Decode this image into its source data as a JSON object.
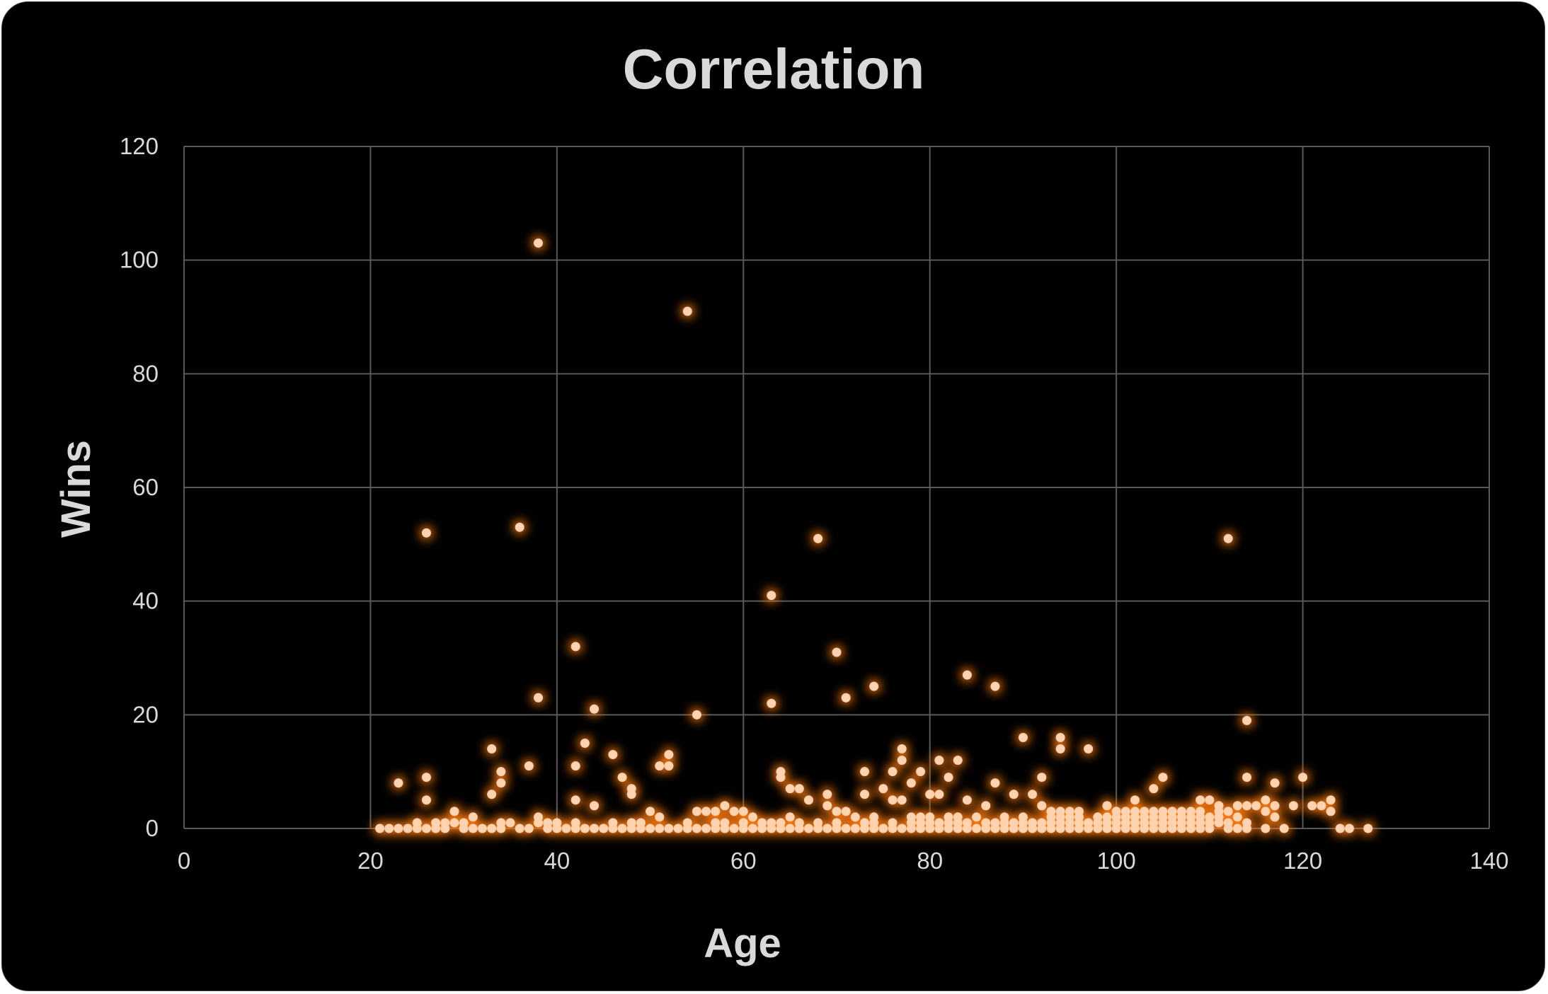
{
  "chart_data": {
    "type": "scatter",
    "title": "Correlation",
    "xlabel": "Age",
    "ylabel": "Wins",
    "xlim": [
      0,
      140
    ],
    "ylim": [
      0,
      120
    ],
    "xticks": [
      0,
      20,
      40,
      60,
      80,
      100,
      120,
      140
    ],
    "yticks": [
      0,
      20,
      40,
      60,
      80,
      100,
      120
    ],
    "grid": true,
    "legend": "none",
    "colors": {
      "background": "#000000",
      "marker": "#ffd2b0",
      "glow": "#ff7a10",
      "text": "#d9d9d9",
      "grid": "#595959"
    },
    "points": [
      [
        38,
        103
      ],
      [
        54,
        91
      ],
      [
        26,
        52
      ],
      [
        36,
        53
      ],
      [
        68,
        51
      ],
      [
        112,
        51
      ],
      [
        63,
        41
      ],
      [
        42,
        32
      ],
      [
        70,
        31
      ],
      [
        74,
        25
      ],
      [
        84,
        27
      ],
      [
        87,
        25
      ],
      [
        38,
        23
      ],
      [
        63,
        22
      ],
      [
        71,
        23
      ],
      [
        44,
        21
      ],
      [
        55,
        20
      ],
      [
        114,
        19
      ],
      [
        90,
        16
      ],
      [
        94,
        16
      ],
      [
        33,
        14
      ],
      [
        43,
        15
      ],
      [
        77,
        14
      ],
      [
        94,
        14
      ],
      [
        97,
        14
      ],
      [
        46,
        13
      ],
      [
        52,
        13
      ],
      [
        37,
        11
      ],
      [
        42,
        11
      ],
      [
        51,
        11
      ],
      [
        52,
        11
      ],
      [
        73,
        10
      ],
      [
        76,
        10
      ],
      [
        77,
        12
      ],
      [
        79,
        10
      ],
      [
        81,
        12
      ],
      [
        83,
        12
      ],
      [
        23,
        8
      ],
      [
        26,
        9
      ],
      [
        34,
        10
      ],
      [
        34,
        8
      ],
      [
        47,
        9
      ],
      [
        64,
        10
      ],
      [
        64,
        9
      ],
      [
        82,
        9
      ],
      [
        87,
        8
      ],
      [
        92,
        9
      ],
      [
        105,
        9
      ],
      [
        114,
        9
      ],
      [
        117,
        8
      ],
      [
        120,
        9
      ],
      [
        33,
        6
      ],
      [
        26,
        5
      ],
      [
        42,
        5
      ],
      [
        44,
        4
      ],
      [
        48,
        7
      ],
      [
        48,
        6
      ],
      [
        65,
        7
      ],
      [
        66,
        7
      ],
      [
        67,
        5
      ],
      [
        69,
        6
      ],
      [
        73,
        6
      ],
      [
        75,
        7
      ],
      [
        76,
        5
      ],
      [
        77,
        5
      ],
      [
        78,
        8
      ],
      [
        80,
        6
      ],
      [
        81,
        6
      ],
      [
        84,
        5
      ],
      [
        86,
        4
      ],
      [
        89,
        6
      ],
      [
        91,
        6
      ],
      [
        92,
        4
      ],
      [
        102,
        5
      ],
      [
        104,
        7
      ],
      [
        109,
        5
      ],
      [
        110,
        5
      ],
      [
        111,
        4
      ],
      [
        113,
        4
      ],
      [
        115,
        4
      ],
      [
        116,
        5
      ],
      [
        117,
        4
      ],
      [
        119,
        4
      ],
      [
        121,
        4
      ],
      [
        123,
        5
      ],
      [
        123,
        3
      ],
      [
        29,
        3
      ],
      [
        31,
        2
      ],
      [
        50,
        3
      ],
      [
        51,
        2
      ],
      [
        55,
        3
      ],
      [
        56,
        3
      ],
      [
        57,
        3
      ],
      [
        58,
        4
      ],
      [
        59,
        3
      ],
      [
        60,
        3
      ],
      [
        61,
        2
      ],
      [
        69,
        4
      ],
      [
        70,
        3
      ],
      [
        71,
        3
      ],
      [
        72,
        2
      ],
      [
        74,
        2
      ],
      [
        78,
        2
      ],
      [
        79,
        2
      ],
      [
        80,
        2
      ],
      [
        82,
        2
      ],
      [
        83,
        2
      ],
      [
        85,
        2
      ],
      [
        88,
        2
      ],
      [
        90,
        2
      ],
      [
        93,
        3
      ],
      [
        94,
        3
      ],
      [
        95,
        3
      ],
      [
        96,
        3
      ],
      [
        98,
        2
      ],
      [
        99,
        4
      ],
      [
        100,
        3
      ],
      [
        101,
        3
      ],
      [
        102,
        3
      ],
      [
        103,
        3
      ],
      [
        104,
        3
      ],
      [
        105,
        3
      ],
      [
        106,
        3
      ],
      [
        107,
        3
      ],
      [
        108,
        3
      ],
      [
        109,
        3
      ],
      [
        110,
        2
      ],
      [
        111,
        3
      ],
      [
        112,
        3
      ],
      [
        113,
        2
      ],
      [
        114,
        4
      ],
      [
        116,
        3
      ],
      [
        117,
        2
      ],
      [
        21,
        0
      ],
      [
        22,
        0
      ],
      [
        23,
        0
      ],
      [
        24,
        0
      ],
      [
        25,
        1
      ],
      [
        25,
        0
      ],
      [
        26,
        0
      ],
      [
        27,
        1
      ],
      [
        27,
        0
      ],
      [
        28,
        1
      ],
      [
        28,
        0
      ],
      [
        29,
        1
      ],
      [
        30,
        1
      ],
      [
        30,
        0
      ],
      [
        31,
        0
      ],
      [
        32,
        0
      ],
      [
        33,
        0
      ],
      [
        34,
        0
      ],
      [
        34,
        1
      ],
      [
        35,
        1
      ],
      [
        36,
        0
      ],
      [
        37,
        0
      ],
      [
        38,
        1
      ],
      [
        38,
        2
      ],
      [
        39,
        0
      ],
      [
        39,
        1
      ],
      [
        40,
        1
      ],
      [
        40,
        0
      ],
      [
        41,
        0
      ],
      [
        42,
        0
      ],
      [
        42,
        1
      ],
      [
        43,
        0
      ],
      [
        44,
        0
      ],
      [
        45,
        0
      ],
      [
        46,
        0
      ],
      [
        46,
        1
      ],
      [
        47,
        0
      ],
      [
        48,
        1
      ],
      [
        48,
        0
      ],
      [
        49,
        0
      ],
      [
        49,
        1
      ],
      [
        50,
        0
      ],
      [
        51,
        0
      ],
      [
        52,
        0
      ],
      [
        53,
        0
      ],
      [
        54,
        0
      ],
      [
        54,
        1
      ],
      [
        55,
        0
      ],
      [
        56,
        0
      ],
      [
        57,
        1
      ],
      [
        57,
        0
      ],
      [
        58,
        0
      ],
      [
        58,
        1
      ],
      [
        59,
        0
      ],
      [
        60,
        0
      ],
      [
        60,
        1
      ],
      [
        61,
        0
      ],
      [
        62,
        0
      ],
      [
        62,
        1
      ],
      [
        63,
        0
      ],
      [
        63,
        1
      ],
      [
        64,
        0
      ],
      [
        64,
        1
      ],
      [
        65,
        0
      ],
      [
        65,
        2
      ],
      [
        66,
        0
      ],
      [
        66,
        1
      ],
      [
        67,
        0
      ],
      [
        68,
        1
      ],
      [
        68,
        0
      ],
      [
        69,
        0
      ],
      [
        70,
        0
      ],
      [
        70,
        1
      ],
      [
        71,
        0
      ],
      [
        72,
        0
      ],
      [
        73,
        0
      ],
      [
        73,
        1
      ],
      [
        74,
        0
      ],
      [
        74,
        1
      ],
      [
        75,
        0
      ],
      [
        76,
        1
      ],
      [
        76,
        0
      ],
      [
        77,
        0
      ],
      [
        78,
        0
      ],
      [
        78,
        1
      ],
      [
        79,
        0
      ],
      [
        79,
        1
      ],
      [
        80,
        0
      ],
      [
        80,
        1
      ],
      [
        81,
        0
      ],
      [
        81,
        1
      ],
      [
        82,
        0
      ],
      [
        82,
        1
      ],
      [
        83,
        0
      ],
      [
        83,
        1
      ],
      [
        84,
        0
      ],
      [
        84,
        1
      ],
      [
        85,
        0
      ],
      [
        86,
        0
      ],
      [
        86,
        1
      ],
      [
        87,
        0
      ],
      [
        87,
        1
      ],
      [
        88,
        0
      ],
      [
        88,
        1
      ],
      [
        89,
        0
      ],
      [
        89,
        1
      ],
      [
        90,
        0
      ],
      [
        90,
        1
      ],
      [
        91,
        0
      ],
      [
        91,
        1
      ],
      [
        92,
        0
      ],
      [
        92,
        1
      ],
      [
        93,
        0
      ],
      [
        93,
        1
      ],
      [
        93,
        2
      ],
      [
        94,
        0
      ],
      [
        94,
        1
      ],
      [
        94,
        2
      ],
      [
        95,
        0
      ],
      [
        95,
        1
      ],
      [
        95,
        2
      ],
      [
        96,
        0
      ],
      [
        96,
        1
      ],
      [
        96,
        2
      ],
      [
        97,
        0
      ],
      [
        97,
        1
      ],
      [
        98,
        0
      ],
      [
        98,
        1
      ],
      [
        99,
        0
      ],
      [
        99,
        1
      ],
      [
        99,
        2
      ],
      [
        100,
        0
      ],
      [
        100,
        1
      ],
      [
        100,
        2
      ],
      [
        101,
        0
      ],
      [
        101,
        1
      ],
      [
        101,
        2
      ],
      [
        102,
        0
      ],
      [
        102,
        1
      ],
      [
        102,
        2
      ],
      [
        103,
        0
      ],
      [
        103,
        1
      ],
      [
        103,
        2
      ],
      [
        104,
        0
      ],
      [
        104,
        1
      ],
      [
        104,
        2
      ],
      [
        105,
        0
      ],
      [
        105,
        1
      ],
      [
        105,
        2
      ],
      [
        106,
        0
      ],
      [
        106,
        1
      ],
      [
        106,
        2
      ],
      [
        107,
        0
      ],
      [
        107,
        1
      ],
      [
        107,
        2
      ],
      [
        108,
        0
      ],
      [
        108,
        1
      ],
      [
        108,
        2
      ],
      [
        109,
        0
      ],
      [
        109,
        1
      ],
      [
        109,
        2
      ],
      [
        110,
        0
      ],
      [
        110,
        1
      ],
      [
        111,
        1
      ],
      [
        111,
        2
      ],
      [
        112,
        0
      ],
      [
        112,
        1
      ],
      [
        113,
        0
      ],
      [
        114,
        0
      ],
      [
        114,
        1
      ],
      [
        116,
        0
      ],
      [
        118,
        0
      ],
      [
        122,
        4
      ],
      [
        124,
        0
      ],
      [
        125,
        0
      ],
      [
        127,
        0
      ]
    ]
  }
}
